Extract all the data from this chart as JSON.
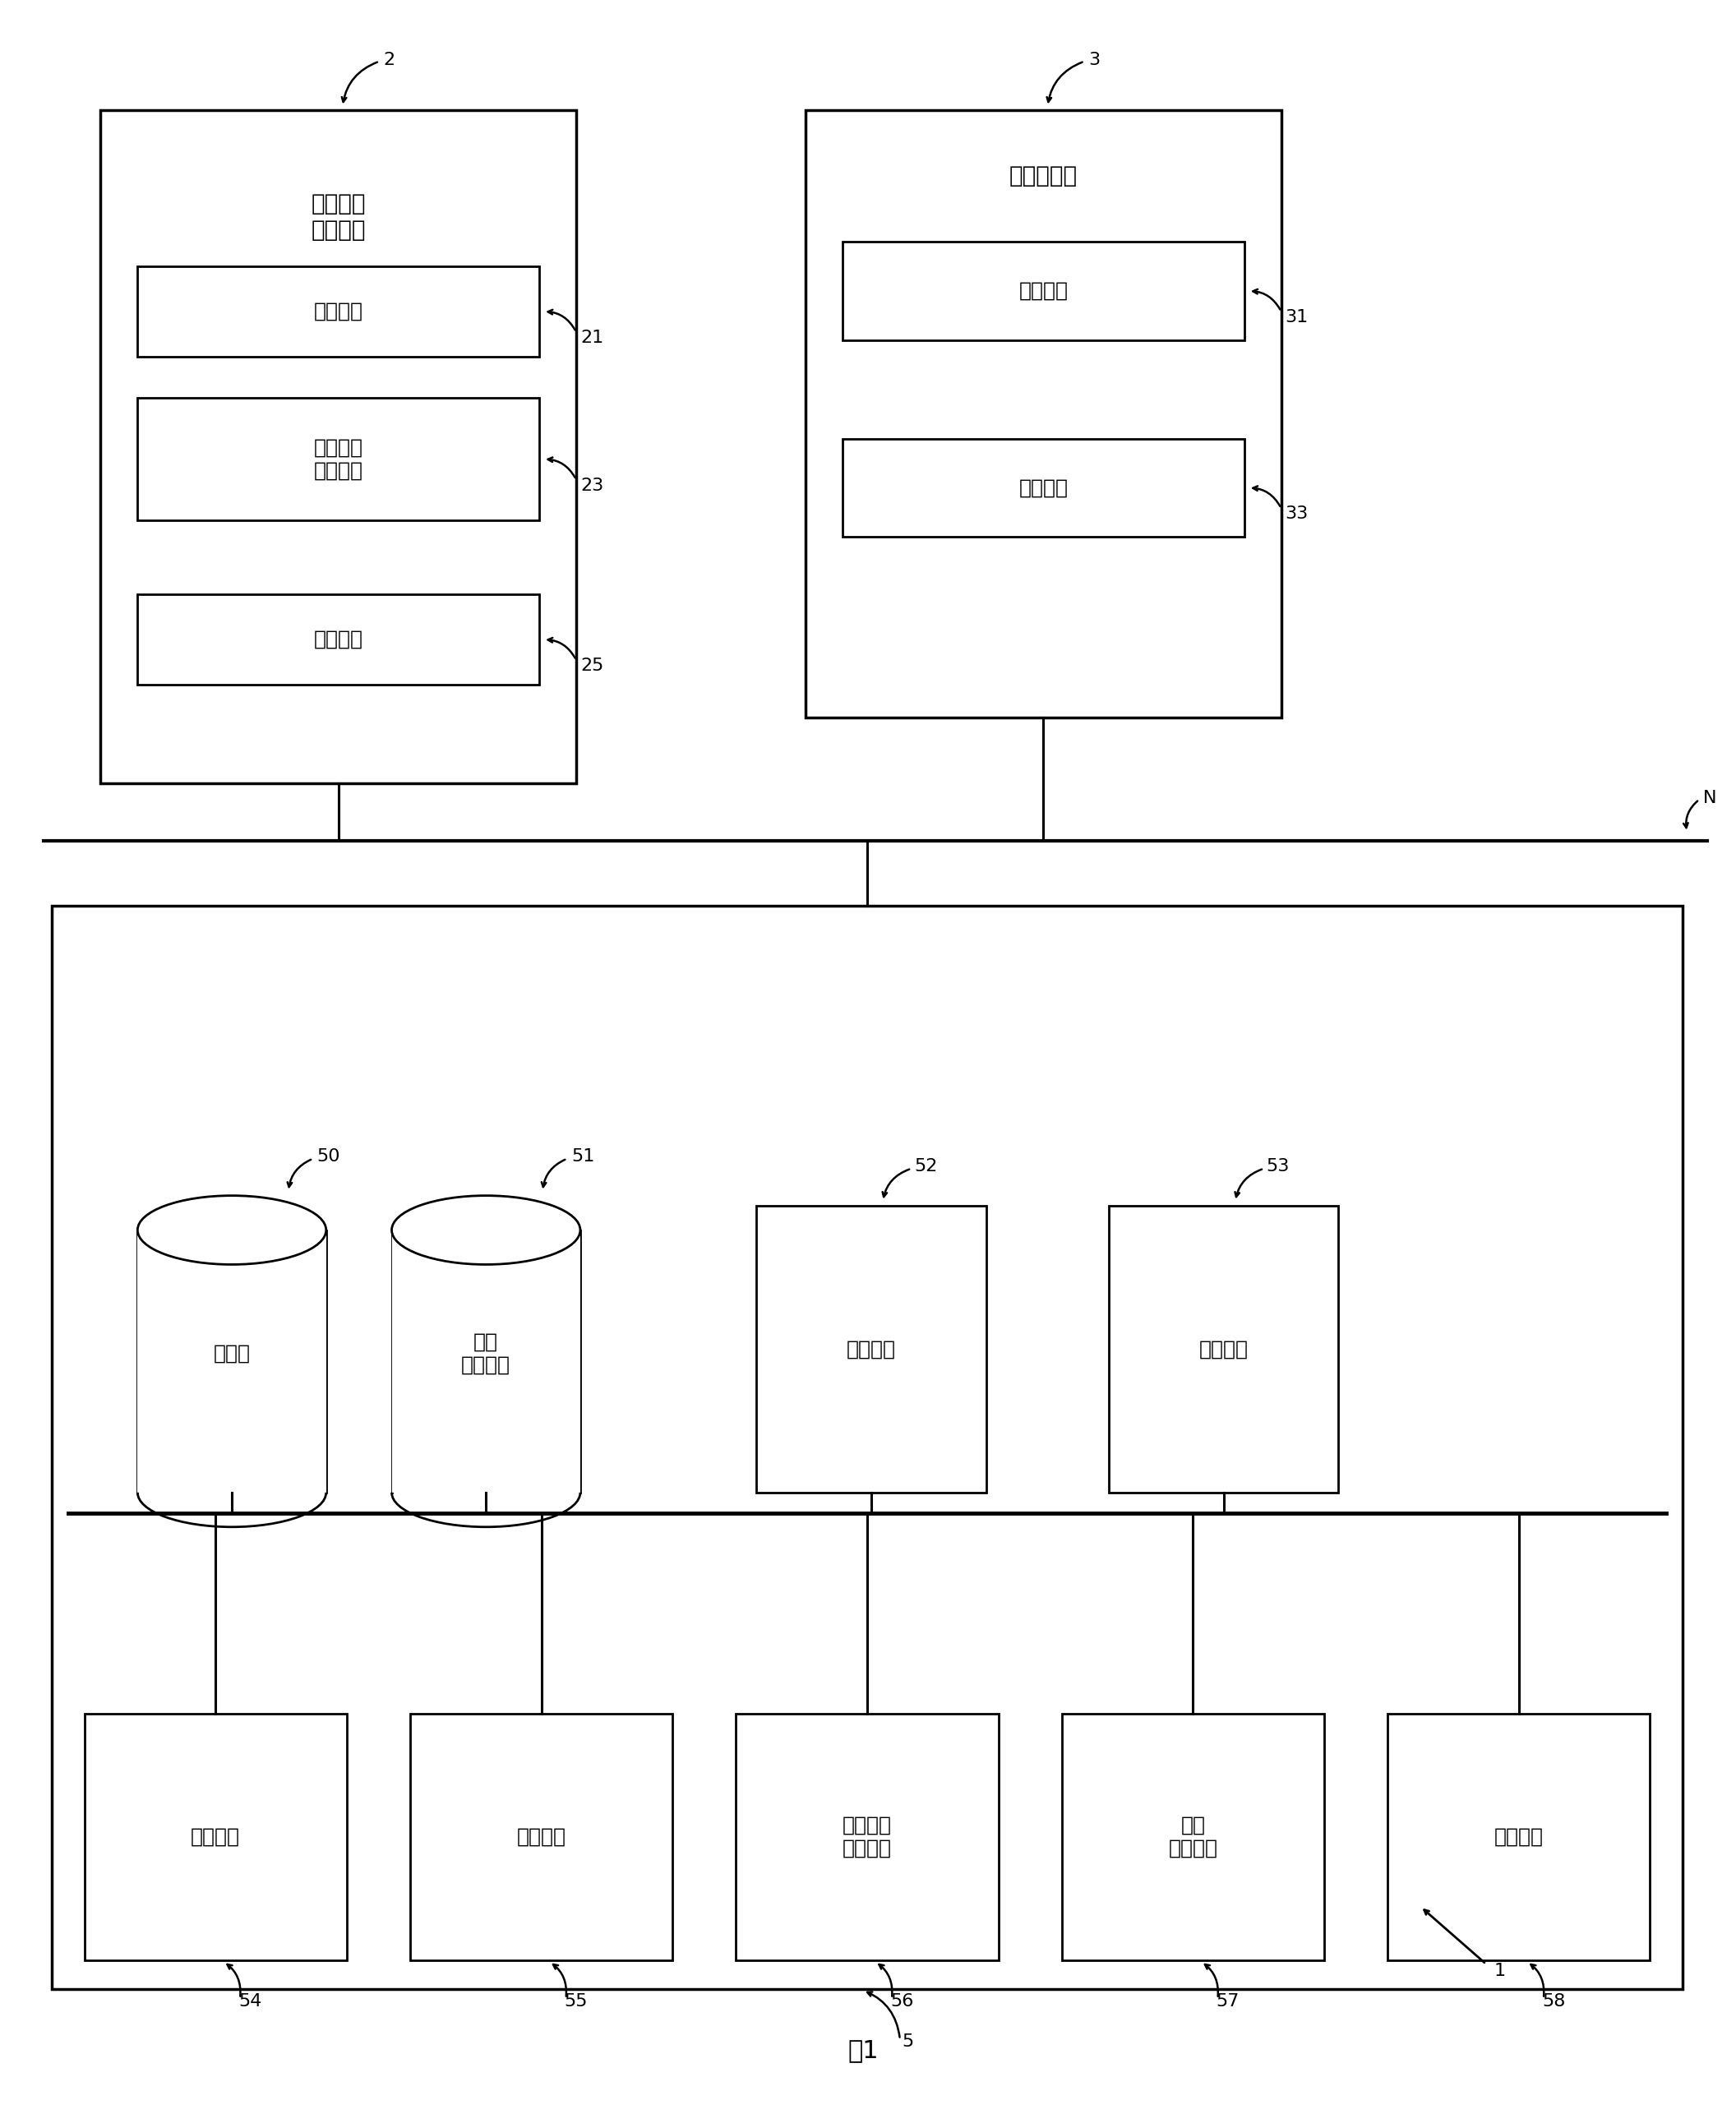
{
  "bg_color": "#ffffff",
  "fig_width": 21.12,
  "fig_height": 25.72,
  "title": "图1",
  "arrow_label": "1",
  "network_label": "N",
  "device2_label": "2",
  "device3_label": "3",
  "server_label": "5",
  "device2_title": "医用图像\n诊断装置",
  "device3_title": "客户端装置",
  "boxes_device2": [
    {
      "label": "控制部件",
      "tag": "21"
    },
    {
      "label": "共有对象\n生成部件",
      "tag": "23"
    },
    {
      "label": "收发部件",
      "tag": "25"
    }
  ],
  "boxes_device3": [
    {
      "label": "控制部件",
      "tag": "31"
    },
    {
      "label": "收发部件",
      "tag": "33"
    }
  ],
  "server_top_items": [
    {
      "label": "数据库",
      "tag": "50",
      "type": "cylinder"
    },
    {
      "label": "数据\n保存部件",
      "tag": "51",
      "type": "cylinder"
    },
    {
      "label": "操作部件",
      "tag": "52",
      "type": "rect"
    },
    {
      "label": "显示部件",
      "tag": "53",
      "type": "rect"
    }
  ],
  "server_bottom_boxes": [
    {
      "label": "收发部件",
      "tag": "54"
    },
    {
      "label": "判定部件",
      "tag": "55"
    },
    {
      "label": "共有对象\n加工部件",
      "tag": "56"
    },
    {
      "label": "信息\n收集部件",
      "tag": "57"
    },
    {
      "label": "控制部件",
      "tag": "58"
    }
  ]
}
